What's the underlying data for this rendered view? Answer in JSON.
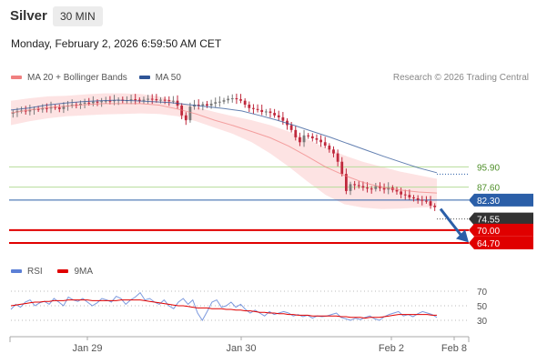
{
  "header": {
    "instrument": "Silver",
    "timeframe": "30 MIN",
    "timestamp": "Monday, February 2, 2026 6:59:50 AM CET"
  },
  "legend": {
    "items": [
      {
        "label": "MA 20 + Bollinger Bands",
        "color": "#f08080"
      },
      {
        "label": "MA 50",
        "color": "#2f5597"
      }
    ],
    "credit": "Research © 2026 Trading Central"
  },
  "rsi_legend": {
    "items": [
      {
        "label": "RSI",
        "color": "#5b7fd6"
      },
      {
        "label": "9MA",
        "color": "#e00000"
      }
    ]
  },
  "colors": {
    "up_candle": "#7a7a7a",
    "down_candle": "#c0283c",
    "resistance": "#b6dc9a",
    "pivot": "#2b5fa8",
    "support": "#e00000",
    "bollinger_fill": "#fde3e3",
    "last_price_tag": "#333333"
  },
  "chart_data": [
    {
      "type": "candlestick",
      "title": "Silver 30 MIN",
      "x_tick_labels": [
        "Jan 29",
        "Jan 30",
        "Feb 2",
        "Feb 8"
      ],
      "levels": [
        {
          "label": "95.90",
          "value": 95.9,
          "kind": "resistance"
        },
        {
          "label": "87.60",
          "value": 87.6,
          "kind": "resistance"
        },
        {
          "label": "82.30",
          "value": 82.3,
          "kind": "pivot"
        },
        {
          "label": "74.55",
          "value": 74.55,
          "kind": "last-price"
        },
        {
          "label": "70.00",
          "value": 70.0,
          "kind": "support"
        },
        {
          "label": "64.70",
          "value": 64.7,
          "kind": "support"
        }
      ],
      "ylim": [
        58,
        124
      ],
      "close_series": [
        118.2,
        118.8,
        119.0,
        118.6,
        119.2,
        119.6,
        119.4,
        120.0,
        119.8,
        120.4,
        120.2,
        119.6,
        120.8,
        121.0,
        121.4,
        121.2,
        121.8,
        122.2,
        122.0,
        122.6,
        122.4,
        122.8,
        123.0,
        122.8,
        123.2,
        123.4,
        123.0,
        123.2,
        123.6,
        123.4,
        123.0,
        123.4,
        123.8,
        123.6,
        123.2,
        123.4,
        123.2,
        122.8,
        123.0,
        121.0,
        117.0,
        115.0,
        120.6,
        121.4,
        121.0,
        121.6,
        121.0,
        121.8,
        122.4,
        122.6,
        123.2,
        123.8,
        124.0,
        123.6,
        123.0,
        121.4,
        120.0,
        119.6,
        119.2,
        118.4,
        118.6,
        118.0,
        117.0,
        116.2,
        114.8,
        113.0,
        111.0,
        108.0,
        106.0,
        108.8,
        108.4,
        107.6,
        107.0,
        106.0,
        104.6,
        103.0,
        101.4,
        98.0,
        93.0,
        86.0,
        88.8,
        88.4,
        88.0,
        87.4,
        87.0,
        86.8,
        88.0,
        87.2,
        86.6,
        87.4,
        86.4,
        85.8,
        84.6,
        84.4,
        83.4,
        83.0,
        82.4,
        82.0,
        81.8,
        80.0,
        79.4
      ],
      "ma50_series": [
        119.2,
        120.0,
        121.2,
        122.0,
        122.6,
        123.0,
        123.2,
        123.0,
        122.6,
        122.2,
        121.4,
        120.6,
        119.8,
        118.8,
        117.0,
        115.0,
        112.8,
        110.4,
        108.0,
        105.4,
        102.8,
        100.2,
        97.8,
        95.4,
        93.5
      ],
      "bollinger_upper": [
        123.0,
        124.0,
        124.8,
        125.0,
        125.6,
        126.0,
        126.0,
        125.8,
        124.8,
        122.4,
        120.4,
        118.4,
        116.6,
        115.0,
        113.0,
        110.4,
        107.2,
        103.8,
        100.6,
        98.0,
        96.0,
        94.0,
        92.5,
        91.0
      ],
      "bollinger_lower": [
        113.0,
        114.6,
        115.8,
        116.6,
        117.0,
        117.4,
        117.6,
        117.8,
        117.6,
        116.6,
        114.6,
        112.0,
        109.4,
        106.0,
        101.4,
        96.0,
        90.0,
        84.4,
        80.6,
        79.2,
        78.6,
        78.8,
        79.2,
        79.4
      ],
      "ma20_series": [
        118.0,
        119.2,
        120.2,
        120.8,
        121.4,
        121.8,
        121.8,
        121.8,
        121.2,
        119.6,
        117.6,
        115.0,
        112.8,
        110.4,
        107.8,
        104.4,
        100.2,
        95.8,
        92.4,
        89.6,
        87.6,
        86.4,
        85.6,
        85.2
      ]
    },
    {
      "type": "line",
      "title": "RSI",
      "y_tick_labels": [
        "70",
        "50",
        "30"
      ],
      "ylim": [
        20,
        80
      ],
      "series": [
        {
          "name": "RSI",
          "values": [
            45,
            52,
            48,
            55,
            58,
            50,
            54,
            56,
            52,
            60,
            55,
            50,
            62,
            58,
            56,
            60,
            55,
            50,
            54,
            60,
            58,
            55,
            63,
            60,
            52,
            58,
            62,
            68,
            58,
            60,
            55,
            52,
            58,
            50,
            46,
            55,
            60,
            52,
            58,
            40,
            30,
            42,
            55,
            58,
            48,
            50,
            55,
            48,
            52,
            45,
            40,
            44,
            40,
            36,
            42,
            38,
            40,
            42,
            40,
            36,
            38,
            35,
            37,
            33,
            36,
            35,
            36,
            38,
            40,
            34,
            32,
            30,
            33,
            31,
            34,
            36,
            32,
            30,
            35,
            38,
            40,
            42,
            36,
            38,
            35,
            39,
            42,
            40,
            38,
            34
          ]
        },
        {
          "name": "9MA",
          "values": [
            50,
            51,
            52,
            53,
            54,
            55,
            55,
            56,
            56,
            57,
            57,
            57,
            58,
            58,
            58,
            58,
            58,
            57,
            57,
            57,
            57,
            57,
            57,
            58,
            58,
            58,
            58,
            58,
            57,
            56,
            55,
            54,
            53,
            52,
            51,
            50,
            50,
            49,
            48,
            47,
            47,
            47,
            46,
            46,
            46,
            45,
            45,
            44,
            44,
            43,
            43,
            42,
            41,
            41,
            40,
            40,
            39,
            39,
            38,
            38,
            37,
            37,
            37,
            36,
            36,
            36,
            36,
            36,
            36,
            35,
            35,
            34,
            34,
            34,
            33,
            34,
            34,
            34,
            35,
            36,
            37,
            38,
            38,
            38,
            38,
            38,
            38,
            38,
            37,
            37
          ]
        }
      ]
    }
  ]
}
